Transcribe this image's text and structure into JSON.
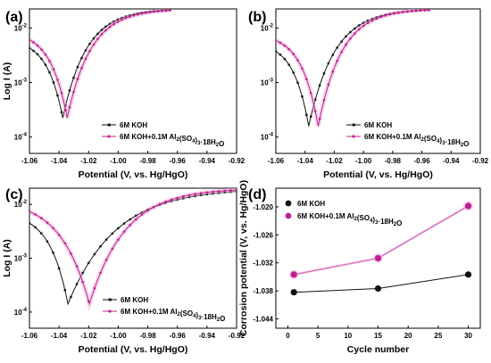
{
  "colors": {
    "koh": "#111111",
    "al": "#c0208f",
    "al_halo": "#e9a6d8"
  },
  "chart_data": [
    {
      "panel": "(a)",
      "type": "line",
      "scale_y": "log",
      "xlabel": "Potential (V, vs. Hg/HgO)",
      "ylabel": "Log I (A)",
      "xlim": [
        -1.06,
        -0.92
      ],
      "ylim_exp": [
        -4.3,
        -1.65
      ],
      "xticks": [
        "-1.06",
        "-1.04",
        "-1.02",
        "-1.00",
        "-0.98",
        "-0.96",
        "-0.94",
        "-0.92"
      ],
      "yticks": [
        {
          "exp": -2,
          "label": "10⁻²"
        },
        {
          "exp": -3,
          "label": "10⁻³"
        },
        {
          "exp": -4,
          "label": "10⁻⁴"
        }
      ],
      "legend_position": "bottom-right",
      "series": [
        {
          "name": "6M KOH",
          "color_key": "koh",
          "marker": "square",
          "x0": -1.06,
          "x1": -0.965,
          "corr": -1.0375,
          "jmin": -3.65,
          "left_top": -2.2,
          "right_top": -1.65,
          "width_l": 0.012,
          "width_r": 0.02
        },
        {
          "name": "6M KOH+0.1M Al₂(SO₄)₃·18H₂O",
          "color_key": "al",
          "marker": "circle",
          "x0": -1.06,
          "x1": -0.965,
          "corr": -1.0345,
          "jmin": -3.65,
          "left_top": -2.05,
          "right_top": -1.65,
          "width_l": 0.013,
          "width_r": 0.02
        }
      ]
    },
    {
      "panel": "(b)",
      "type": "line",
      "scale_y": "log",
      "xlabel": "Potential (V, vs. Hg/HgO)",
      "ylabel": "",
      "xlim": [
        -1.06,
        -0.92
      ],
      "ylim_exp": [
        -4.3,
        -1.65
      ],
      "xticks": [
        "-1.06",
        "-1.04",
        "-1.02",
        "-1.00",
        "-0.98",
        "-0.96",
        "-0.94",
        "-0.92"
      ],
      "yticks": [
        {
          "exp": -2,
          "label": "10⁻²"
        },
        {
          "exp": -3,
          "label": "10⁻³"
        },
        {
          "exp": -4,
          "label": "10⁻⁴"
        }
      ],
      "legend_position": "bottom-right",
      "series": [
        {
          "name": "6M KOH",
          "color_key": "koh",
          "marker": "square",
          "x0": -1.06,
          "x1": -0.955,
          "corr": -1.0375,
          "jmin": -3.8,
          "left_top": -2.25,
          "right_top": -1.65,
          "width_l": 0.012,
          "width_r": 0.022
        },
        {
          "name": "6M KOH+0.1M Al₂(SO₄)₃·18H₂O",
          "color_key": "al",
          "marker": "circle",
          "x0": -1.06,
          "x1": -0.955,
          "corr": -1.031,
          "jmin": -3.8,
          "left_top": -2.1,
          "right_top": -1.65,
          "width_l": 0.013,
          "width_r": 0.02
        }
      ]
    },
    {
      "panel": "(c)",
      "type": "line",
      "scale_y": "log",
      "xlabel": "Potential (V, vs. Hg/HgO)",
      "ylabel": "Log I (A)",
      "xlim": [
        -1.06,
        -0.92
      ],
      "ylim_exp": [
        -4.3,
        -1.7
      ],
      "xticks": [
        "-1.06",
        "-1.04",
        "-1.02",
        "-1.00",
        "-0.98",
        "-0.96",
        "-0.94",
        "-0.92"
      ],
      "yticks": [
        {
          "exp": -2,
          "label": "10⁻²"
        },
        {
          "exp": -3,
          "label": "10⁻³"
        },
        {
          "exp": -4,
          "label": "10⁻⁴"
        }
      ],
      "legend_position": "bottom-right",
      "series": [
        {
          "name": "6M KOH",
          "color_key": "koh",
          "marker": "square",
          "x0": -1.06,
          "x1": -0.92,
          "corr": -1.034,
          "jmin": -3.85,
          "left_top": -2.15,
          "right_top": -1.7,
          "width_l": 0.014,
          "width_r": 0.04
        },
        {
          "name": "6M KOH+0.1M Al₂(SO₄)₃·18H₂O",
          "color_key": "al",
          "marker": "circle",
          "x0": -1.06,
          "x1": -0.92,
          "corr": -1.0195,
          "jmin": -3.85,
          "left_top": -1.9,
          "right_top": -1.7,
          "width_l": 0.022,
          "width_r": 0.03
        }
      ]
    },
    {
      "panel": "(d)",
      "type": "line",
      "xlabel": "Cycle number",
      "ylabel": "Corrosion potential (V, vs. Hg/HgO)",
      "xlim": [
        -2,
        32
      ],
      "ylim": [
        -1.046,
        -1.016
      ],
      "xticks": [
        0,
        5,
        10,
        15,
        20,
        25,
        30
      ],
      "yticks": [
        -1.02,
        -1.026,
        -1.032,
        -1.038,
        -1.044
      ],
      "ytick_labels": [
        "-1.020",
        "-1.026",
        "-1.032",
        "-1.038",
        "-1.044"
      ],
      "legend_position": "top-left",
      "series": [
        {
          "name": "6M KOH",
          "color_key": "koh",
          "x": [
            1,
            15,
            30
          ],
          "y": [
            -1.0383,
            -1.0375,
            -1.0345
          ]
        },
        {
          "name": "6M KOH+0.1M Al₂(SO₄)₃·18H₂O",
          "color_key": "al",
          "x": [
            1,
            15,
            30
          ],
          "y": [
            -1.0345,
            -1.031,
            -1.0198
          ]
        }
      ]
    }
  ]
}
